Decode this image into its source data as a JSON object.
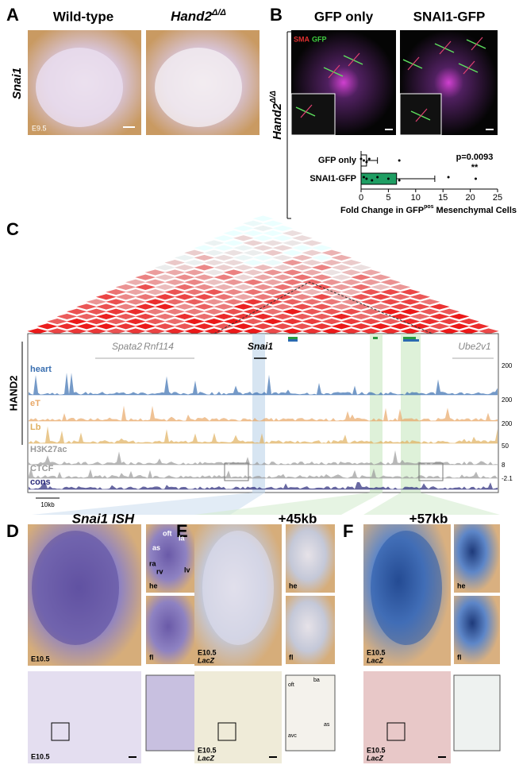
{
  "panel_a": {
    "letter": "A",
    "col1": "Wild-type",
    "col2": "Hand2",
    "col2_sup": "Δ/Δ",
    "row_label": "Snai1",
    "stage": "E9.5"
  },
  "panel_b": {
    "letter": "B",
    "col1": "GFP only",
    "col2": "SNAI1-GFP",
    "stain1": "SMA",
    "stain2": "GFP",
    "row_label": "Hand2",
    "row_label_sup": "Δ/Δ"
  },
  "chart_data": {
    "type": "bar",
    "orientation": "horizontal",
    "categories": [
      "GFP only",
      "SNAI1-GFP"
    ],
    "values": [
      1,
      6.5
    ],
    "errors": [
      2,
      7
    ],
    "points": [
      [
        0,
        0.5,
        1,
        1.5,
        7
      ],
      [
        0.5,
        1,
        2,
        3,
        5,
        7,
        16,
        21
      ]
    ],
    "colors": [
      "#ffffff",
      "#1f9e63"
    ],
    "xlim": [
      0,
      25
    ],
    "xticks": [
      0,
      5,
      10,
      15,
      20,
      25
    ],
    "xlabel": "Fold Change in GFP",
    "xlabel_sup": "pos",
    "xlabel_end": "Mesenchymal Cells",
    "annotation": "p=0.0093",
    "significance": "**"
  },
  "panel_c": {
    "letter": "C",
    "group": "HAND2",
    "genes": [
      "Spata2",
      "Rnf114",
      "Snai1",
      "Ube2v1"
    ],
    "tracks": [
      {
        "name": "heart",
        "color": "#3a6fb0",
        "scale": "200"
      },
      {
        "name": "eT",
        "color": "#e8a868",
        "scale": "200"
      },
      {
        "name": "Lb",
        "color": "#e0b060",
        "scale": "200"
      },
      {
        "name": "H3K27ac",
        "color": "#9a9a9a",
        "scale": "50"
      },
      {
        "name": "CTCF",
        "color": "#9a9a9a",
        "scale": "8"
      },
      {
        "name": "cons",
        "color": "#2a2a7a",
        "scale": "-2.1"
      }
    ],
    "scale_bar": "10kb"
  },
  "panel_d": {
    "letter": "D",
    "title": "Snai1 ISH",
    "stage": "E10.5",
    "heart_labels": [
      "as",
      "oft",
      "la",
      "ra",
      "rv",
      "lv"
    ],
    "he": "he",
    "fl": "fl",
    "section_stage": "E10.5"
  },
  "panel_e": {
    "letter": "E",
    "title": "+45kb",
    "stage": "E10.5",
    "reporter": "LacZ",
    "he": "he",
    "fl": "fl",
    "section_stage": "E10.5",
    "section_reporter": "LacZ",
    "inset_labels": [
      "oft",
      "ba",
      "avc",
      "as"
    ]
  },
  "panel_f": {
    "letter": "F",
    "title": "+57kb",
    "stage": "E10.5",
    "reporter": "LacZ",
    "he": "he",
    "fl": "fl",
    "section_stage": "E10.5",
    "section_reporter": "LacZ"
  }
}
